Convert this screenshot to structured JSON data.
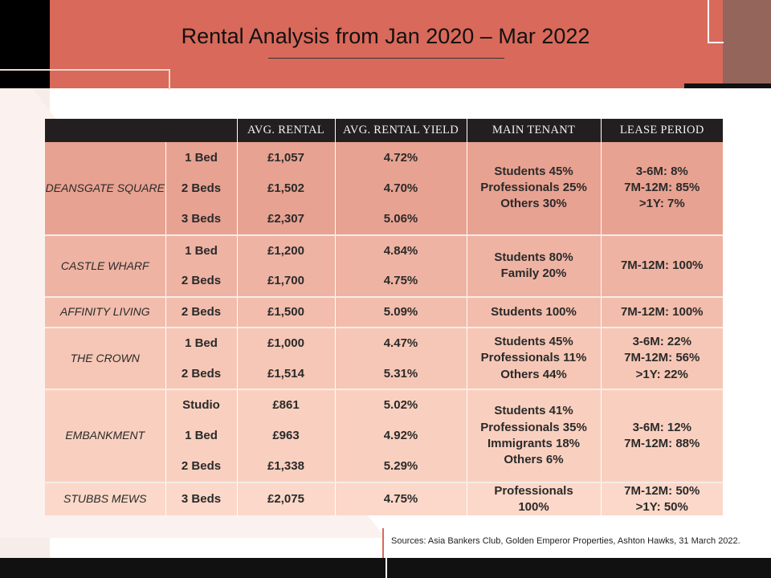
{
  "title": "Rental Analysis from  Jan 2020 – Mar 2022",
  "headers": [
    "",
    "AVG. RENTAL",
    "AVG. RENTAL YIELD",
    "MAIN TENANT",
    "LEASE PERIOD"
  ],
  "colors": {
    "banner": "#d9695a",
    "header_bg": "#231f20",
    "group_backgrounds": [
      "#e8a291",
      "#eeb3a3",
      "#f2bdac",
      "#f6c7b6",
      "#f9d0bf",
      "#fbd8c9"
    ]
  },
  "groups": [
    {
      "property": "DEANSGATE SQUARE",
      "tenant": [
        "Students 45%",
        "Professionals 25%",
        "Others 30%"
      ],
      "lease": [
        "3-6M: 8%",
        "7M-12M: 85%",
        ">1Y: 7%"
      ],
      "units": [
        {
          "type": "1 Bed",
          "rental": "£1,057",
          "yield": "4.72%"
        },
        {
          "type": "2 Beds",
          "rental": "£1,502",
          "yield": "4.70%"
        },
        {
          "type": "3 Beds",
          "rental": "£2,307",
          "yield": "5.06%"
        }
      ]
    },
    {
      "property": "CASTLE WHARF",
      "tenant": [
        "Students 80%",
        "Family 20%"
      ],
      "lease": [
        "7M-12M: 100%"
      ],
      "units": [
        {
          "type": "1 Bed",
          "rental": "£1,200",
          "yield": "4.84%"
        },
        {
          "type": "2 Beds",
          "rental": "£1,700",
          "yield": "4.75%"
        }
      ]
    },
    {
      "property": "AFFINITY LIVING",
      "tenant": [
        "Students 100%"
      ],
      "lease": [
        "7M-12M: 100%"
      ],
      "units": [
        {
          "type": "2 Beds",
          "rental": "£1,500",
          "yield": "5.09%"
        }
      ]
    },
    {
      "property": "THE CROWN",
      "tenant": [
        "Students 45%",
        "Professionals 11%",
        "Others 44%"
      ],
      "lease": [
        "3-6M: 22%",
        "7M-12M: 56%",
        ">1Y: 22%"
      ],
      "units": [
        {
          "type": "1 Bed",
          "rental": "£1,000",
          "yield": "4.47%"
        },
        {
          "type": "2 Beds",
          "rental": "£1,514",
          "yield": "5.31%"
        }
      ]
    },
    {
      "property": "EMBANKMENT",
      "tenant": [
        "Students 41%",
        "Professionals 35%",
        "Immigrants 18%",
        "Others 6%"
      ],
      "lease": [
        "3-6M: 12%",
        "7M-12M: 88%"
      ],
      "units": [
        {
          "type": "Studio",
          "rental": "£861",
          "yield": "5.02%"
        },
        {
          "type": "1 Bed",
          "rental": "£963",
          "yield": "4.92%"
        },
        {
          "type": "2 Beds",
          "rental": "£1,338",
          "yield": "5.29%"
        }
      ]
    },
    {
      "property": "STUBBS MEWS",
      "tenant": [
        "Professionals",
        "100%"
      ],
      "lease": [
        "7M-12M: 50%",
        ">1Y: 50%"
      ],
      "units": [
        {
          "type": "3 Beds",
          "rental": "£2,075",
          "yield": "4.75%"
        }
      ]
    }
  ],
  "sources": "Sources: Asia Bankers Club, Golden Emperor Properties, Ashton Hawks, 31 March 2022."
}
